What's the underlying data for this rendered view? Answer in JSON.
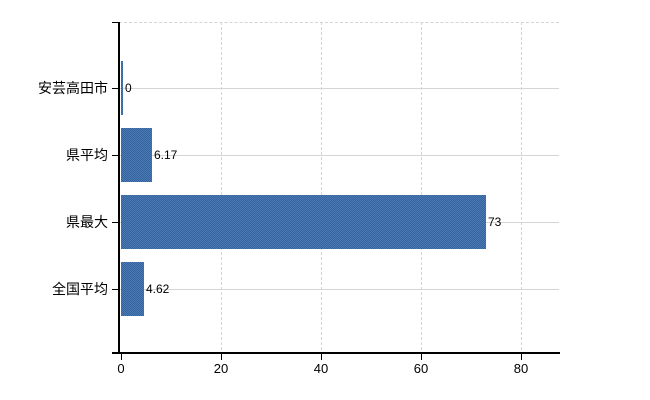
{
  "chart_data": {
    "type": "bar",
    "orientation": "horizontal",
    "categories": [
      "安芸高田市",
      "県平均",
      "県最大",
      "全国平均"
    ],
    "values": [
      0,
      6.17,
      73,
      4.62
    ],
    "value_labels": [
      "0",
      "6.17",
      "73",
      "4.62"
    ],
    "xticks": [
      0,
      20,
      40,
      60,
      80
    ],
    "xtick_labels": [
      "0",
      "20",
      "40",
      "60",
      "80"
    ],
    "xlim": [
      0,
      87.6
    ],
    "grid": true,
    "legend": false,
    "colors": {
      "bar_base": "#3f6ea9",
      "bar_dither_dark": "#35639e",
      "bar_dither_light": "#4b79b3",
      "gridline_solid": "#d3d7d3",
      "gridline_dashed": "#d4d4d4",
      "axis": "#000000",
      "text": "#000000",
      "background": "#ffffff"
    }
  }
}
